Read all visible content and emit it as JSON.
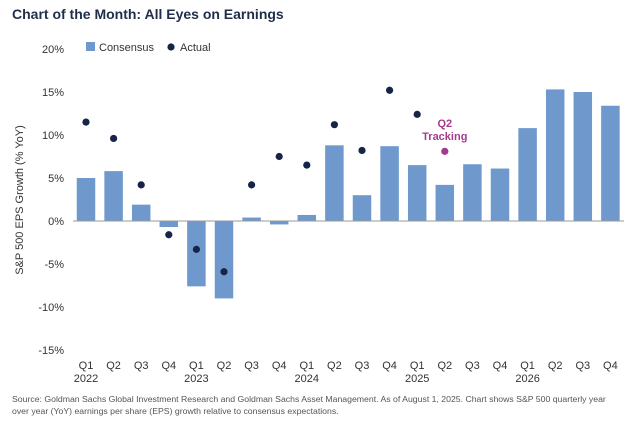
{
  "header": {
    "title": "Chart of the Month: All Eyes on Earnings"
  },
  "chart_data": {
    "type": "bar",
    "title": "Chart of the Month: All Eyes on Earnings",
    "ylabel": "S&P 500 EPS Growth (% YoY)",
    "xlabel": "",
    "ylim": [
      -15,
      20
    ],
    "yticks": [
      "20%",
      "15%",
      "10%",
      "5%",
      "0%",
      "-5%",
      "-10%",
      "-15%"
    ],
    "ytick_values": [
      20,
      15,
      10,
      5,
      0,
      -5,
      -10,
      -15
    ],
    "grid": false,
    "legend_position": "top-left",
    "categories": [
      "Q1",
      "Q2",
      "Q3",
      "Q4",
      "Q1",
      "Q2",
      "Q3",
      "Q4",
      "Q1",
      "Q2",
      "Q3",
      "Q4",
      "Q1",
      "Q2",
      "Q3",
      "Q4",
      "Q1",
      "Q2",
      "Q3",
      "Q4"
    ],
    "year_labels": [
      {
        "index": 0,
        "label": "2022"
      },
      {
        "index": 4,
        "label": "2023"
      },
      {
        "index": 8,
        "label": "2024"
      },
      {
        "index": 12,
        "label": "2025"
      },
      {
        "index": 16,
        "label": "2026"
      }
    ],
    "series": [
      {
        "name": "Consensus",
        "kind": "bar",
        "color": "#6f99cd",
        "values": [
          5.0,
          5.8,
          1.9,
          -0.7,
          -7.6,
          -9.0,
          0.4,
          -0.4,
          0.7,
          8.8,
          3.0,
          8.7,
          6.5,
          4.2,
          6.6,
          6.1,
          10.8,
          15.3,
          15.0,
          13.4
        ]
      },
      {
        "name": "Actual",
        "kind": "scatter",
        "color": "#152447",
        "values": [
          11.5,
          9.6,
          4.2,
          -1.6,
          -3.3,
          -5.9,
          4.2,
          7.5,
          6.5,
          11.2,
          8.2,
          15.2,
          12.4,
          null,
          null,
          null,
          null,
          null,
          null,
          null
        ]
      }
    ],
    "annotations": [
      {
        "text_line1": "Q2",
        "text_line2": "Tracking",
        "index": 13,
        "value": 8.1,
        "color": "#a63a8e"
      }
    ]
  },
  "footer": {
    "source": "Source: Goldman Sachs Global Investment Research and Goldman Sachs Asset Management. As of August 1, 2025. Chart shows S&P 500 quarterly year over year (YoY) earnings per share (EPS) growth relative to consensus expectations."
  }
}
